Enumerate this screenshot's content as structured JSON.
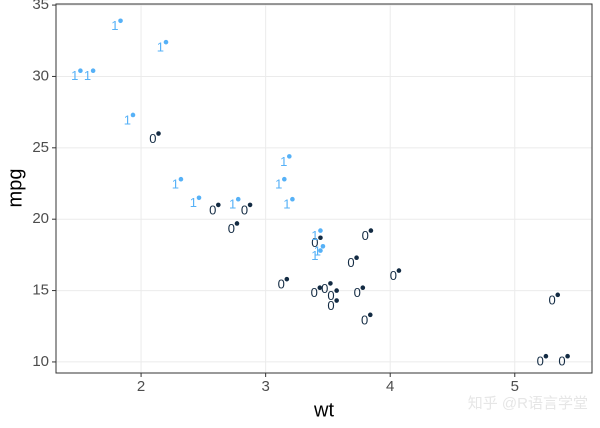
{
  "chart_data": {
    "type": "scatter",
    "x_label": "wt",
    "y_label": "mpg",
    "xlim": [
      1.317,
      5.62
    ],
    "ylim": [
      9.225,
      35.075
    ],
    "xticks": [
      2,
      3,
      4,
      5
    ],
    "yticks": [
      10,
      15,
      20,
      25,
      30,
      35
    ],
    "grid": true,
    "series": [
      {
        "x": [
          2.62,
          2.875,
          2.32,
          3.215,
          3.44,
          3.46,
          3.57,
          3.19,
          3.15,
          3.44,
          3.44,
          4.07,
          3.73,
          3.78,
          5.25,
          5.424,
          5.345,
          2.2,
          1.615,
          1.835,
          2.465,
          3.52,
          3.435,
          3.84,
          3.845,
          1.935,
          2.14,
          1.513,
          3.17,
          2.77,
          3.57,
          2.78
        ],
        "values": [
          21.0,
          21.0,
          22.8,
          21.4,
          18.7,
          18.1,
          14.3,
          24.4,
          22.8,
          19.2,
          17.8,
          16.4,
          17.3,
          15.2,
          10.4,
          10.4,
          14.7,
          32.4,
          30.4,
          33.9,
          21.5,
          15.5,
          15.2,
          13.3,
          19.2,
          27.3,
          26.0,
          30.4,
          15.8,
          19.7,
          15.0,
          21.4
        ],
        "labels": [
          "0",
          "0",
          "1",
          "1",
          "0",
          "1",
          "0",
          "1",
          "1",
          "1",
          "1",
          "0",
          "0",
          "0",
          "0",
          "0",
          "0",
          "1",
          "1",
          "1",
          "1",
          "0",
          "0",
          "0",
          "0",
          "1",
          "0",
          "1",
          "0",
          "0",
          "0",
          "1"
        ],
        "label_colors": {
          "0": "#132b43",
          "1": "#56b1f7"
        }
      }
    ],
    "watermark": "知乎 @R语言学堂"
  }
}
